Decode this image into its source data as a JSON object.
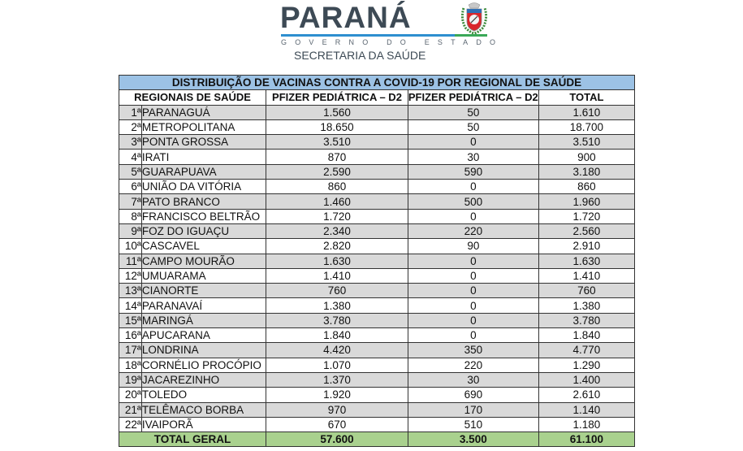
{
  "header": {
    "brand": "PARANÁ",
    "government": "GOVERNO DO ESTADO",
    "department": "SECRETARIA DA SAÚDE",
    "colors": {
      "brand_text": "#3d4a55",
      "line_blue": "#2e8fcf",
      "line_green": "#3aa857"
    }
  },
  "table": {
    "title": "DISTRIBUIÇÃO DE VACINAS CONTRA A COVID-19 POR REGIONAL DE SAÚDE",
    "columns": [
      "REGIONAIS DE SAÚDE",
      "PFIZER PEDIÁTRICA – D2",
      "PFIZER PEDIÁTRICA – D2",
      "TOTAL"
    ],
    "rows": [
      {
        "num": "1ª",
        "name": "PARANAGUÁ",
        "col1": "1.560",
        "col2": "50",
        "total": "1.610"
      },
      {
        "num": "2ª",
        "name": "METROPOLITANA",
        "col1": "18.650",
        "col2": "50",
        "total": "18.700"
      },
      {
        "num": "3ª",
        "name": "PONTA GROSSA",
        "col1": "3.510",
        "col2": "0",
        "total": "3.510"
      },
      {
        "num": "4ª",
        "name": "IRATI",
        "col1": "870",
        "col2": "30",
        "total": "900"
      },
      {
        "num": "5ª",
        "name": "GUARAPUAVA",
        "col1": "2.590",
        "col2": "590",
        "total": "3.180"
      },
      {
        "num": "6ª",
        "name": "UNIÃO DA VITÓRIA",
        "col1": "860",
        "col2": "0",
        "total": "860"
      },
      {
        "num": "7ª",
        "name": "PATO BRANCO",
        "col1": "1.460",
        "col2": "500",
        "total": "1.960"
      },
      {
        "num": "8ª",
        "name": "FRANCISCO BELTRÃO",
        "col1": "1.720",
        "col2": "0",
        "total": "1.720"
      },
      {
        "num": "9ª",
        "name": "FOZ DO IGUAÇU",
        "col1": "2.340",
        "col2": "220",
        "total": "2.560"
      },
      {
        "num": "10ª",
        "name": "CASCAVEL",
        "col1": "2.820",
        "col2": "90",
        "total": "2.910"
      },
      {
        "num": "11ª",
        "name": "CAMPO MOURÃO",
        "col1": "1.630",
        "col2": "0",
        "total": "1.630"
      },
      {
        "num": "12ª",
        "name": "UMUARAMA",
        "col1": "1.410",
        "col2": "0",
        "total": "1.410"
      },
      {
        "num": "13ª",
        "name": "CIANORTE",
        "col1": "760",
        "col2": "0",
        "total": "760"
      },
      {
        "num": "14ª",
        "name": "PARANAVAÍ",
        "col1": "1.380",
        "col2": "0",
        "total": "1.380"
      },
      {
        "num": "15ª",
        "name": "MARINGÁ",
        "col1": "3.780",
        "col2": "0",
        "total": "3.780"
      },
      {
        "num": "16ª",
        "name": "APUCARANA",
        "col1": "1.840",
        "col2": "0",
        "total": "1.840"
      },
      {
        "num": "17ª",
        "name": "LONDRINA",
        "col1": "4.420",
        "col2": "350",
        "total": "4.770"
      },
      {
        "num": "18ª",
        "name": "CORNÉLIO PROCÓPIO",
        "col1": "1.070",
        "col2": "220",
        "total": "1.290"
      },
      {
        "num": "19ª",
        "name": "JACAREZINHO",
        "col1": "1.370",
        "col2": "30",
        "total": "1.400"
      },
      {
        "num": "20ª",
        "name": "TOLEDO",
        "col1": "1.920",
        "col2": "690",
        "total": "2.610"
      },
      {
        "num": "21ª",
        "name": "TELÊMACO BORBA",
        "col1": "970",
        "col2": "170",
        "total": "1.140"
      },
      {
        "num": "22ª",
        "name": "IVAIPORÃ",
        "col1": "670",
        "col2": "510",
        "total": "1.180"
      }
    ],
    "total_row": {
      "label": "TOTAL GERAL",
      "col1": "57.600",
      "col2": "3.500",
      "total": "61.100"
    },
    "colors": {
      "title_bg": "#9cc2e5",
      "shade_bg": "#d9d9d9",
      "total_bg": "#a9d18e"
    }
  }
}
